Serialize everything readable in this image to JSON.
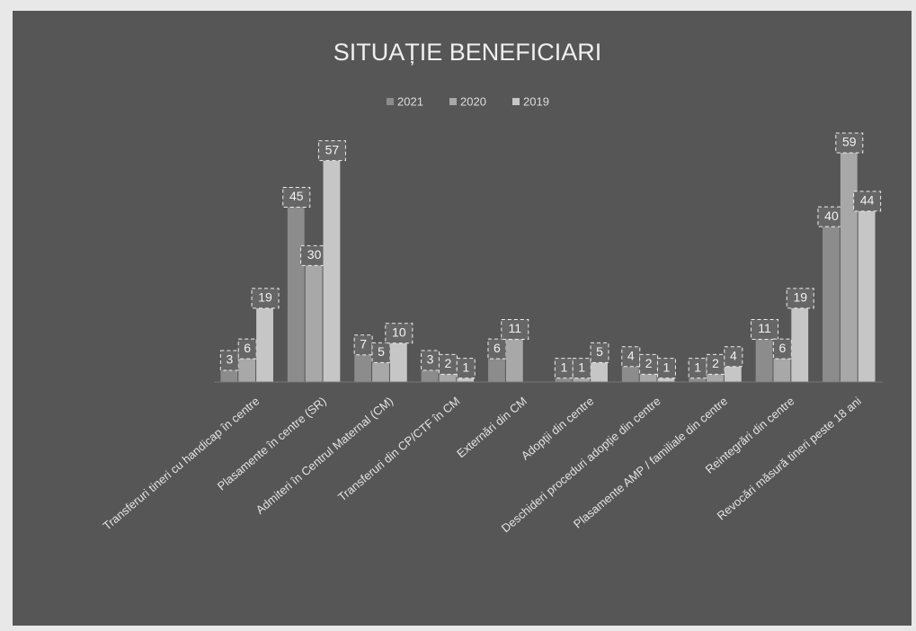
{
  "chart_data": {
    "type": "bar",
    "title": "SITUAȚIE BENEFICIARI",
    "categories": [
      "Transferuri tineri cu handicap în centre",
      "Plasamente în centre (SR)",
      "Admiteri în Centrul Maternal (CM)",
      "Transferuri din CP/CTF în CM",
      "Externări din CM",
      "Adopții din centre",
      "Deschideri proceduri adopție din centre",
      "Plasamente AMP / familiale din centre",
      "Reintegrări din centre",
      "Revocări măsură tineri peste 18 ani"
    ],
    "series": [
      {
        "name": "2021",
        "color": "#8c8c8c",
        "values": [
          3,
          45,
          7,
          3,
          6,
          1,
          4,
          1,
          11,
          40
        ]
      },
      {
        "name": "2020",
        "color": "#a8a8a8",
        "values": [
          6,
          30,
          5,
          2,
          11,
          1,
          2,
          2,
          6,
          59
        ]
      },
      {
        "name": "2019",
        "color": "#c6c6c6",
        "values": [
          19,
          57,
          10,
          1,
          null,
          5,
          1,
          4,
          19,
          44
        ]
      }
    ]
  }
}
